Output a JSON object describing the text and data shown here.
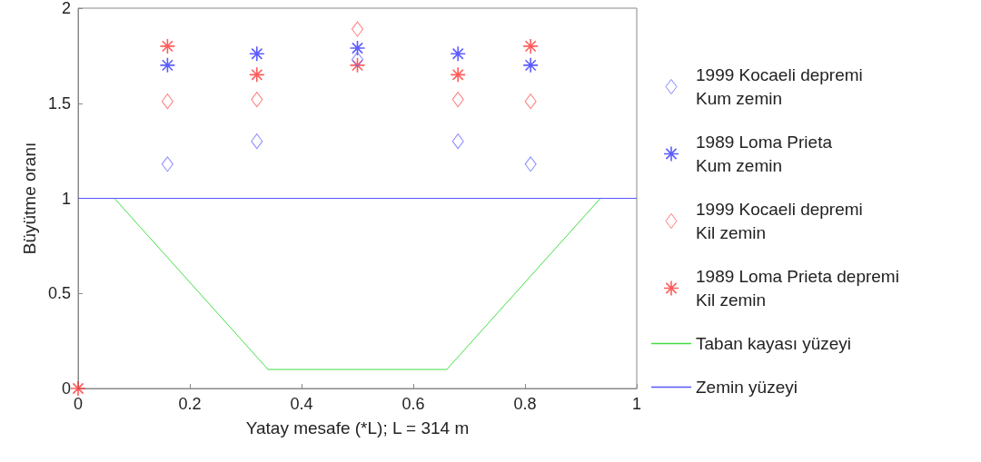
{
  "chart_data": {
    "type": "scatter",
    "xlabel": "Yatay mesafe (*L); L = 314 m",
    "ylabel": "Büyütme oranı",
    "xlim": [
      0,
      1
    ],
    "xticks": [
      0,
      0.2,
      0.4,
      0.6,
      0.8,
      1
    ],
    "ylim": [
      0,
      2
    ],
    "yticks": [
      0,
      0.5,
      1,
      1.5,
      2
    ],
    "grid": false,
    "legend": "right",
    "series": [
      {
        "name": "1999 Kocaeli depremi\nKum zemin",
        "color": "#6666ff",
        "marker": "diamond",
        "x": [
          0.16,
          0.32,
          0.5,
          0.68,
          0.81
        ],
        "values": [
          1.18,
          1.3,
          1.73,
          1.3,
          1.18
        ]
      },
      {
        "name": "1989 Loma Prieta\nKum zemin",
        "color": "#3333ff",
        "marker": "star",
        "x": [
          0.16,
          0.32,
          0.5,
          0.68,
          0.81
        ],
        "values": [
          1.7,
          1.76,
          1.79,
          1.76,
          1.7
        ]
      },
      {
        "name": "1999 Kocaeli depremi\nKil zemin",
        "color": "#ff5555",
        "marker": "diamond",
        "x": [
          0.16,
          0.32,
          0.5,
          0.68,
          0.81
        ],
        "values": [
          1.51,
          1.52,
          1.89,
          1.52,
          1.51
        ]
      },
      {
        "name": "1989 Loma Prieta depremi\nKil zemin",
        "color": "#ff3333",
        "marker": "star",
        "x": [
          0,
          0.16,
          0.32,
          0.5,
          0.68,
          0.81
        ],
        "values": [
          0,
          1.8,
          1.65,
          1.7,
          1.65,
          1.8
        ]
      },
      {
        "name": "Taban kayası yüzeyi",
        "type": "line",
        "color": "#44dd44",
        "marker": "none",
        "x": [
          0.065,
          0.34,
          0.66,
          0.935
        ],
        "values": [
          1,
          0.1,
          0.1,
          1
        ]
      },
      {
        "name": "Zemin yüzeyi",
        "type": "line",
        "color": "#5555ff",
        "marker": "none",
        "x": [
          0,
          1
        ],
        "values": [
          1,
          1
        ]
      }
    ]
  }
}
